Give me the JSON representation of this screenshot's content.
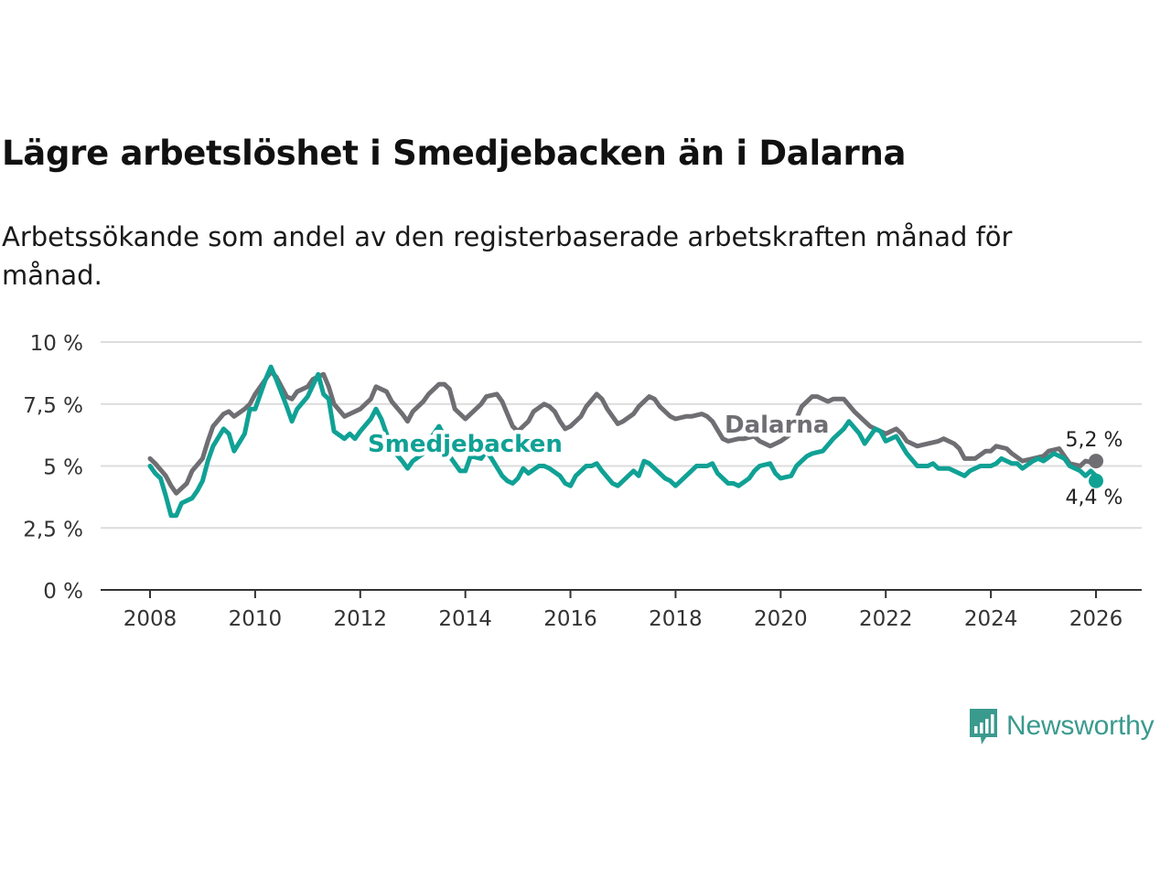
{
  "title": "Lägre arbetslöshet i Smedjebacken än i Dalarna",
  "subtitle": "Arbetssökande som andel av den registerbaserade arbetskraften månad för månad.",
  "brand": {
    "name": "Newsworthy"
  },
  "colors": {
    "smedjebacken": "#10a195",
    "dalarna": "#6e6e73",
    "grid": "#dcdcdc",
    "axis": "#333333"
  },
  "chart_data": {
    "type": "line",
    "title": "Lägre arbetslöshet i Smedjebacken än i Dalarna",
    "xlabel": "",
    "ylabel": "",
    "xlim": [
      2007.9,
      2026.95
    ],
    "ylim": [
      0,
      10
    ],
    "x_ticks": [
      2008,
      2010,
      2012,
      2014,
      2016,
      2018,
      2020,
      2022,
      2024,
      2026
    ],
    "x_tick_labels": [
      "2008",
      "2010",
      "2012",
      "2014",
      "2016",
      "2018",
      "2020",
      "2022",
      "2024",
      "2026"
    ],
    "y_ticks": [
      0,
      2.5,
      5,
      7.5,
      10
    ],
    "y_tick_labels": [
      "0 %",
      "2,5 %",
      "5 %",
      "7,5 %",
      "10 %"
    ],
    "grid": true,
    "series": [
      {
        "name": "Dalarna",
        "label": "Dalarna",
        "end_label": "5,2 %",
        "points": [
          [
            2008.0,
            5.3
          ],
          [
            2008.1,
            5.1
          ],
          [
            2008.3,
            4.6
          ],
          [
            2008.4,
            4.2
          ],
          [
            2008.5,
            3.9
          ],
          [
            2008.7,
            4.3
          ],
          [
            2008.8,
            4.8
          ],
          [
            2009.0,
            5.3
          ],
          [
            2009.1,
            6.0
          ],
          [
            2009.2,
            6.6
          ],
          [
            2009.4,
            7.1
          ],
          [
            2009.5,
            7.2
          ],
          [
            2009.6,
            7.0
          ],
          [
            2009.8,
            7.3
          ],
          [
            2009.9,
            7.5
          ],
          [
            2010.0,
            7.9
          ],
          [
            2010.2,
            8.5
          ],
          [
            2010.3,
            8.8
          ],
          [
            2010.4,
            8.6
          ],
          [
            2010.6,
            7.8
          ],
          [
            2010.7,
            7.7
          ],
          [
            2010.8,
            8.0
          ],
          [
            2011.0,
            8.2
          ],
          [
            2011.1,
            8.5
          ],
          [
            2011.3,
            8.7
          ],
          [
            2011.4,
            8.2
          ],
          [
            2011.5,
            7.5
          ],
          [
            2011.7,
            7.0
          ],
          [
            2011.8,
            7.1
          ],
          [
            2012.0,
            7.3
          ],
          [
            2012.2,
            7.7
          ],
          [
            2012.3,
            8.2
          ],
          [
            2012.5,
            8.0
          ],
          [
            2012.6,
            7.6
          ],
          [
            2012.8,
            7.1
          ],
          [
            2012.9,
            6.8
          ],
          [
            2013.0,
            7.2
          ],
          [
            2013.2,
            7.6
          ],
          [
            2013.3,
            7.9
          ],
          [
            2013.5,
            8.3
          ],
          [
            2013.6,
            8.3
          ],
          [
            2013.7,
            8.1
          ],
          [
            2013.8,
            7.3
          ],
          [
            2014.0,
            6.9
          ],
          [
            2014.2,
            7.3
          ],
          [
            2014.3,
            7.5
          ],
          [
            2014.4,
            7.8
          ],
          [
            2014.6,
            7.9
          ],
          [
            2014.7,
            7.6
          ],
          [
            2014.8,
            7.1
          ],
          [
            2014.9,
            6.6
          ],
          [
            2015.0,
            6.4
          ],
          [
            2015.2,
            6.8
          ],
          [
            2015.3,
            7.2
          ],
          [
            2015.5,
            7.5
          ],
          [
            2015.6,
            7.4
          ],
          [
            2015.7,
            7.2
          ],
          [
            2015.8,
            6.8
          ],
          [
            2015.9,
            6.5
          ],
          [
            2016.0,
            6.6
          ],
          [
            2016.2,
            7.0
          ],
          [
            2016.3,
            7.4
          ],
          [
            2016.5,
            7.9
          ],
          [
            2016.6,
            7.7
          ],
          [
            2016.7,
            7.3
          ],
          [
            2016.9,
            6.7
          ],
          [
            2017.0,
            6.8
          ],
          [
            2017.2,
            7.1
          ],
          [
            2017.3,
            7.4
          ],
          [
            2017.5,
            7.8
          ],
          [
            2017.6,
            7.7
          ],
          [
            2017.7,
            7.4
          ],
          [
            2017.9,
            7.0
          ],
          [
            2018.0,
            6.9
          ],
          [
            2018.2,
            7.0
          ],
          [
            2018.3,
            7.0
          ],
          [
            2018.5,
            7.1
          ],
          [
            2018.6,
            7.0
          ],
          [
            2018.7,
            6.8
          ],
          [
            2018.9,
            6.1
          ],
          [
            2019.0,
            6.0
          ],
          [
            2019.2,
            6.1
          ],
          [
            2019.3,
            6.1
          ],
          [
            2019.5,
            6.2
          ],
          [
            2019.6,
            6.0
          ],
          [
            2019.8,
            5.8
          ],
          [
            2019.9,
            5.9
          ],
          [
            2020.0,
            6.0
          ],
          [
            2020.2,
            6.3
          ],
          [
            2020.3,
            6.9
          ],
          [
            2020.4,
            7.4
          ],
          [
            2020.6,
            7.8
          ],
          [
            2020.7,
            7.8
          ],
          [
            2020.9,
            7.6
          ],
          [
            2021.0,
            7.7
          ],
          [
            2021.2,
            7.7
          ],
          [
            2021.4,
            7.2
          ],
          [
            2021.6,
            6.8
          ],
          [
            2021.7,
            6.6
          ],
          [
            2021.8,
            6.5
          ],
          [
            2022.0,
            6.3
          ],
          [
            2022.2,
            6.5
          ],
          [
            2022.3,
            6.3
          ],
          [
            2022.4,
            6.0
          ],
          [
            2022.6,
            5.8
          ],
          [
            2022.8,
            5.9
          ],
          [
            2023.0,
            6.0
          ],
          [
            2023.1,
            6.1
          ],
          [
            2023.3,
            5.9
          ],
          [
            2023.4,
            5.7
          ],
          [
            2023.5,
            5.3
          ],
          [
            2023.7,
            5.3
          ],
          [
            2023.9,
            5.6
          ],
          [
            2024.0,
            5.6
          ],
          [
            2024.1,
            5.8
          ],
          [
            2024.3,
            5.7
          ],
          [
            2024.4,
            5.5
          ],
          [
            2024.6,
            5.2
          ],
          [
            2024.8,
            5.3
          ],
          [
            2025.0,
            5.4
          ],
          [
            2025.1,
            5.6
          ],
          [
            2025.3,
            5.7
          ],
          [
            2025.4,
            5.4
          ],
          [
            2025.5,
            5.1
          ],
          [
            2025.7,
            5.0
          ],
          [
            2025.8,
            5.2
          ],
          [
            2026.0,
            5.1
          ],
          [
            2026.0,
            5.2
          ]
        ]
      },
      {
        "name": "Smedjebacken",
        "label": "Smedjebacken",
        "end_label": "4,4 %",
        "points": [
          [
            2008.0,
            5.0
          ],
          [
            2008.1,
            4.7
          ],
          [
            2008.2,
            4.5
          ],
          [
            2008.3,
            3.8
          ],
          [
            2008.4,
            3.0
          ],
          [
            2008.5,
            3.0
          ],
          [
            2008.6,
            3.5
          ],
          [
            2008.8,
            3.7
          ],
          [
            2008.9,
            4.0
          ],
          [
            2009.0,
            4.4
          ],
          [
            2009.1,
            5.2
          ],
          [
            2009.2,
            5.8
          ],
          [
            2009.4,
            6.5
          ],
          [
            2009.5,
            6.3
          ],
          [
            2009.6,
            5.6
          ],
          [
            2009.8,
            6.3
          ],
          [
            2009.9,
            7.3
          ],
          [
            2010.0,
            7.3
          ],
          [
            2010.2,
            8.5
          ],
          [
            2010.3,
            9.0
          ],
          [
            2010.4,
            8.5
          ],
          [
            2010.6,
            7.4
          ],
          [
            2010.7,
            6.8
          ],
          [
            2010.8,
            7.3
          ],
          [
            2011.0,
            7.8
          ],
          [
            2011.2,
            8.7
          ],
          [
            2011.3,
            7.9
          ],
          [
            2011.4,
            7.7
          ],
          [
            2011.5,
            6.4
          ],
          [
            2011.7,
            6.1
          ],
          [
            2011.8,
            6.3
          ],
          [
            2011.9,
            6.1
          ],
          [
            2012.0,
            6.4
          ],
          [
            2012.2,
            6.9
          ],
          [
            2012.3,
            7.3
          ],
          [
            2012.4,
            6.9
          ],
          [
            2012.5,
            6.3
          ],
          [
            2012.6,
            5.7
          ],
          [
            2012.8,
            5.2
          ],
          [
            2012.9,
            4.9
          ],
          [
            2013.0,
            5.2
          ],
          [
            2013.2,
            5.5
          ],
          [
            2013.3,
            6.0
          ],
          [
            2013.5,
            6.6
          ],
          [
            2013.6,
            6.2
          ],
          [
            2013.7,
            5.4
          ],
          [
            2013.9,
            4.8
          ],
          [
            2014.0,
            4.8
          ],
          [
            2014.1,
            5.4
          ],
          [
            2014.3,
            5.3
          ],
          [
            2014.4,
            5.6
          ],
          [
            2014.5,
            5.3
          ],
          [
            2014.7,
            4.6
          ],
          [
            2014.8,
            4.4
          ],
          [
            2014.9,
            4.3
          ],
          [
            2015.0,
            4.5
          ],
          [
            2015.1,
            4.9
          ],
          [
            2015.2,
            4.7
          ],
          [
            2015.4,
            5.0
          ],
          [
            2015.5,
            5.0
          ],
          [
            2015.6,
            4.9
          ],
          [
            2015.8,
            4.6
          ],
          [
            2015.9,
            4.3
          ],
          [
            2016.0,
            4.2
          ],
          [
            2016.1,
            4.6
          ],
          [
            2016.3,
            5.0
          ],
          [
            2016.4,
            5.0
          ],
          [
            2016.5,
            5.1
          ],
          [
            2016.6,
            4.8
          ],
          [
            2016.8,
            4.3
          ],
          [
            2016.9,
            4.2
          ],
          [
            2017.0,
            4.4
          ],
          [
            2017.2,
            4.8
          ],
          [
            2017.3,
            4.6
          ],
          [
            2017.4,
            5.2
          ],
          [
            2017.5,
            5.1
          ],
          [
            2017.7,
            4.7
          ],
          [
            2017.8,
            4.5
          ],
          [
            2017.9,
            4.4
          ],
          [
            2018.0,
            4.2
          ],
          [
            2018.1,
            4.4
          ],
          [
            2018.3,
            4.8
          ],
          [
            2018.4,
            5.0
          ],
          [
            2018.6,
            5.0
          ],
          [
            2018.7,
            5.1
          ],
          [
            2018.8,
            4.7
          ],
          [
            2019.0,
            4.3
          ],
          [
            2019.1,
            4.3
          ],
          [
            2019.2,
            4.2
          ],
          [
            2019.4,
            4.5
          ],
          [
            2019.5,
            4.8
          ],
          [
            2019.6,
            5.0
          ],
          [
            2019.8,
            5.1
          ],
          [
            2019.9,
            4.7
          ],
          [
            2020.0,
            4.5
          ],
          [
            2020.2,
            4.6
          ],
          [
            2020.3,
            5.0
          ],
          [
            2020.4,
            5.2
          ],
          [
            2020.5,
            5.4
          ],
          [
            2020.6,
            5.5
          ],
          [
            2020.8,
            5.6
          ],
          [
            2021.0,
            6.1
          ],
          [
            2021.2,
            6.5
          ],
          [
            2021.3,
            6.8
          ],
          [
            2021.5,
            6.3
          ],
          [
            2021.6,
            5.9
          ],
          [
            2021.8,
            6.5
          ],
          [
            2021.9,
            6.4
          ],
          [
            2022.0,
            6.0
          ],
          [
            2022.2,
            6.2
          ],
          [
            2022.4,
            5.5
          ],
          [
            2022.6,
            5.0
          ],
          [
            2022.8,
            5.0
          ],
          [
            2022.9,
            5.1
          ],
          [
            2023.0,
            4.9
          ],
          [
            2023.2,
            4.9
          ],
          [
            2023.3,
            4.8
          ],
          [
            2023.5,
            4.6
          ],
          [
            2023.6,
            4.8
          ],
          [
            2023.8,
            5.0
          ],
          [
            2024.0,
            5.0
          ],
          [
            2024.1,
            5.1
          ],
          [
            2024.2,
            5.3
          ],
          [
            2024.4,
            5.1
          ],
          [
            2024.5,
            5.1
          ],
          [
            2024.6,
            4.9
          ],
          [
            2024.8,
            5.2
          ],
          [
            2024.9,
            5.3
          ],
          [
            2025.0,
            5.2
          ],
          [
            2025.2,
            5.5
          ],
          [
            2025.4,
            5.3
          ],
          [
            2025.5,
            5.0
          ],
          [
            2025.7,
            4.8
          ],
          [
            2025.8,
            4.6
          ],
          [
            2025.9,
            4.8
          ],
          [
            2026.0,
            4.6
          ],
          [
            2026.0,
            4.4
          ]
        ]
      }
    ]
  }
}
